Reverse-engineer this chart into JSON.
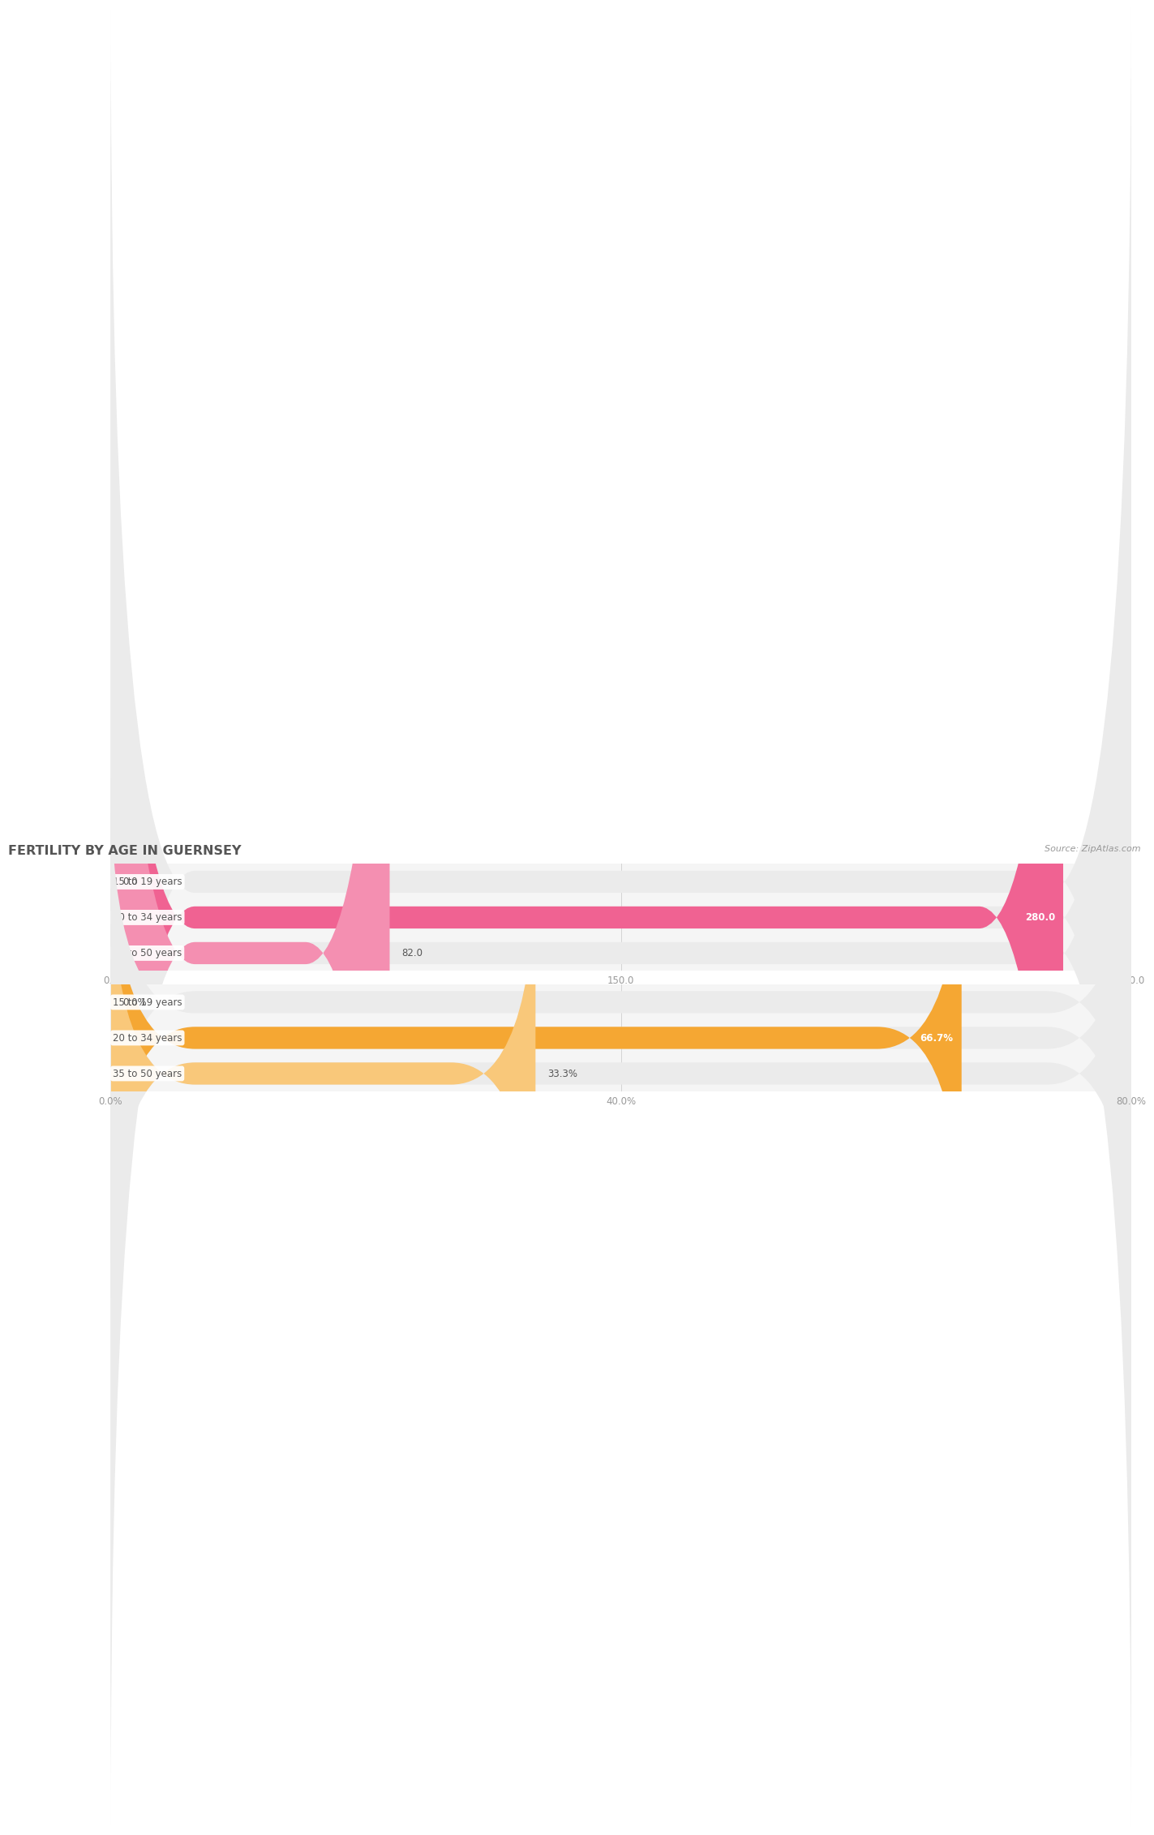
{
  "title": "FERTILITY BY AGE IN GUERNSEY",
  "source": "Source: ZipAtlas.com",
  "top_chart": {
    "categories": [
      "15 to 19 years",
      "20 to 34 years",
      "35 to 50 years"
    ],
    "values": [
      0.0,
      280.0,
      82.0
    ],
    "xlim": [
      0,
      300
    ],
    "xticks": [
      0.0,
      150.0,
      300.0
    ],
    "xtick_labels": [
      "0.0",
      "150.0",
      "300.0"
    ],
    "bar_colors": [
      "#f9b8cc",
      "#f06292",
      "#f48fb1"
    ],
    "track_color": "#ebebeb",
    "value_labels": [
      "0.0",
      "280.0",
      "82.0"
    ],
    "value_inside": [
      false,
      true,
      false
    ]
  },
  "bottom_chart": {
    "categories": [
      "15 to 19 years",
      "20 to 34 years",
      "35 to 50 years"
    ],
    "values": [
      0.0,
      66.7,
      33.3
    ],
    "xlim": [
      0,
      80
    ],
    "xticks": [
      0.0,
      40.0,
      80.0
    ],
    "xtick_labels": [
      "0.0%",
      "40.0%",
      "80.0%"
    ],
    "bar_colors": [
      "#ffd9aa",
      "#f5a733",
      "#f9c87a"
    ],
    "track_color": "#ebebeb",
    "value_labels": [
      "0.0%",
      "66.7%",
      "33.3%"
    ],
    "value_inside": [
      false,
      true,
      false
    ]
  },
  "bg_color": "#f5f5f5",
  "title_color": "#555555",
  "label_color": "#555555",
  "tick_color": "#999999",
  "source_color": "#999999",
  "grid_color": "#cccccc"
}
